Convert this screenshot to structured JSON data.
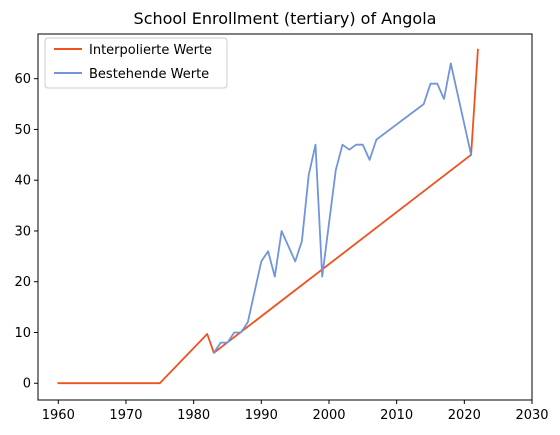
{
  "chart_data": {
    "type": "line",
    "title": "School Enrollment (tertiary) of Angola",
    "xlabel": "",
    "ylabel": "",
    "xlim": [
      1957,
      2030
    ],
    "ylim": [
      -3.3,
      68.8
    ],
    "xticks": [
      1960,
      1970,
      1980,
      1990,
      2000,
      2010,
      2020,
      2030
    ],
    "yticks": [
      0,
      10,
      20,
      30,
      40,
      50,
      60
    ],
    "grid": false,
    "legend_position": "top-left",
    "series": [
      {
        "name": "Interpolierte Werte",
        "color": "#f0511e",
        "points": [
          [
            1960,
            0
          ],
          [
            1975,
            0
          ],
          [
            1982,
            9.7
          ],
          [
            1983,
            6
          ],
          [
            2021,
            45
          ],
          [
            2022,
            65.7
          ]
        ]
      },
      {
        "name": "Bestehende Werte",
        "color": "#7095dd",
        "points": [
          [
            1983,
            6
          ],
          [
            1984,
            8
          ],
          [
            1985,
            8
          ],
          [
            1986,
            10
          ],
          [
            1987,
            10
          ],
          [
            1988,
            12
          ],
          [
            1990,
            24
          ],
          [
            1991,
            26
          ],
          [
            1992,
            21
          ],
          [
            1993,
            30
          ],
          [
            1995,
            24
          ],
          [
            1996,
            28
          ],
          [
            1997,
            41
          ],
          [
            1998,
            47
          ],
          [
            1999,
            21
          ],
          [
            2001,
            42
          ],
          [
            2002,
            47
          ],
          [
            2003,
            46
          ],
          [
            2004,
            47
          ],
          [
            2005,
            47
          ],
          [
            2006,
            44
          ],
          [
            2007,
            48
          ],
          [
            2014,
            55
          ],
          [
            2015,
            59
          ],
          [
            2016,
            59
          ],
          [
            2017,
            56
          ],
          [
            2018,
            63
          ],
          [
            2021,
            45
          ]
        ]
      }
    ]
  }
}
